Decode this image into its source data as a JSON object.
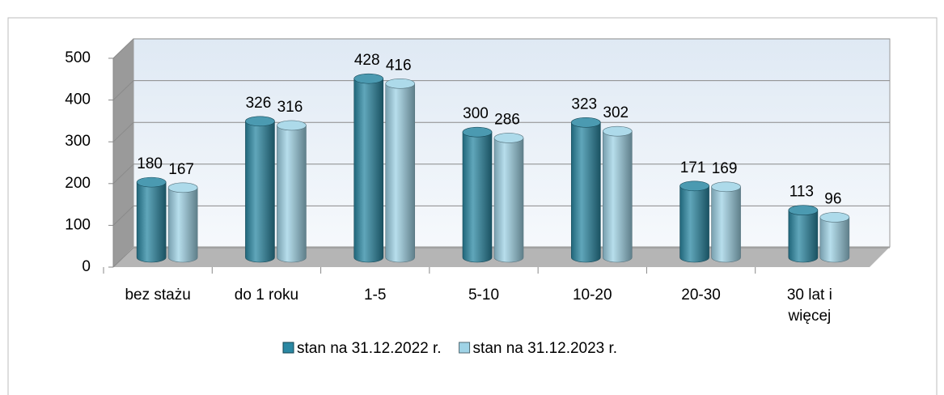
{
  "chart_data": {
    "type": "bar3d",
    "categories": [
      "bez stażu",
      "do 1 roku",
      "1-5",
      "5-10",
      "10-20",
      "20-30",
      "30 lat i więcej"
    ],
    "series": [
      {
        "name": "stan na 31.12.2022 r.",
        "color": "#2b88a3",
        "values": [
          180,
          326,
          428,
          300,
          323,
          171,
          113
        ]
      },
      {
        "name": "stan na 31.12.2023 r.",
        "color": "#9fd3e6",
        "values": [
          167,
          316,
          416,
          286,
          302,
          169,
          96
        ]
      }
    ],
    "ylim": [
      0,
      500
    ],
    "yticks": [
      0,
      100,
      200,
      300,
      400,
      500
    ],
    "grid": true,
    "legend": "bottom"
  }
}
